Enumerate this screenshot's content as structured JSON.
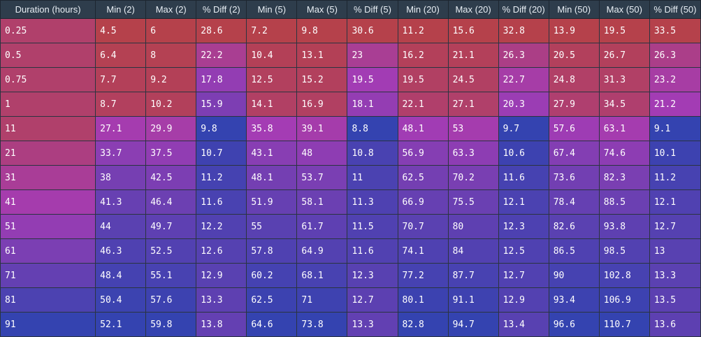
{
  "table": {
    "columns": [
      "Duration (hours)",
      "Min (2)",
      "Max (2)",
      "% Diff (2)",
      "Min (5)",
      "Max (5)",
      "% Diff (5)",
      "Min (20)",
      "Max (20)",
      "% Diff (20)",
      "Min (50)",
      "Max (50)",
      "% Diff (50)"
    ],
    "rows": [
      [
        "0.25",
        "4.5",
        "6",
        "28.6",
        "7.2",
        "9.8",
        "30.6",
        "11.2",
        "15.6",
        "32.8",
        "13.9",
        "19.5",
        "33.5"
      ],
      [
        "0.5",
        "6.4",
        "8",
        "22.2",
        "10.4",
        "13.1",
        "23",
        "16.2",
        "21.1",
        "26.3",
        "20.5",
        "26.7",
        "26.3"
      ],
      [
        "0.75",
        "7.7",
        "9.2",
        "17.8",
        "12.5",
        "15.2",
        "19.5",
        "19.5",
        "24.5",
        "22.7",
        "24.8",
        "31.3",
        "23.2"
      ],
      [
        "1",
        "8.7",
        "10.2",
        "15.9",
        "14.1",
        "16.9",
        "18.1",
        "22.1",
        "27.1",
        "20.3",
        "27.9",
        "34.5",
        "21.2"
      ],
      [
        "11",
        "27.1",
        "29.9",
        "9.8",
        "35.8",
        "39.1",
        "8.8",
        "48.1",
        "53",
        "9.7",
        "57.6",
        "63.1",
        "9.1"
      ],
      [
        "21",
        "33.7",
        "37.5",
        "10.7",
        "43.1",
        "48",
        "10.8",
        "56.9",
        "63.3",
        "10.6",
        "67.4",
        "74.6",
        "10.1"
      ],
      [
        "31",
        "38",
        "42.5",
        "11.2",
        "48.1",
        "53.7",
        "11",
        "62.5",
        "70.2",
        "11.6",
        "73.6",
        "82.3",
        "11.2"
      ],
      [
        "41",
        "41.3",
        "46.4",
        "11.6",
        "51.9",
        "58.1",
        "11.3",
        "66.9",
        "75.5",
        "12.1",
        "78.4",
        "88.5",
        "12.1"
      ],
      [
        "51",
        "44",
        "49.7",
        "12.2",
        "55",
        "61.7",
        "11.5",
        "70.7",
        "80",
        "12.3",
        "82.6",
        "93.8",
        "12.7"
      ],
      [
        "61",
        "46.3",
        "52.5",
        "12.6",
        "57.8",
        "64.9",
        "11.6",
        "74.1",
        "84",
        "12.5",
        "86.5",
        "98.5",
        "13"
      ],
      [
        "71",
        "48.4",
        "55.1",
        "12.9",
        "60.2",
        "68.1",
        "12.3",
        "77.2",
        "87.7",
        "12.7",
        "90",
        "102.8",
        "13.3"
      ],
      [
        "81",
        "50.4",
        "57.6",
        "13.3",
        "62.5",
        "71",
        "12.7",
        "80.1",
        "91.1",
        "12.9",
        "93.4",
        "106.9",
        "13.5"
      ],
      [
        "91",
        "52.1",
        "59.8",
        "13.8",
        "64.6",
        "73.8",
        "13.3",
        "82.8",
        "94.7",
        "13.4",
        "96.6",
        "110.7",
        "13.6"
      ]
    ]
  },
  "colors": {
    "low": "#b5414b",
    "mid": "#a43cb4",
    "high": "#3443b0",
    "header_bg": "#2e3d4c",
    "header_text": "#e8eef4"
  }
}
